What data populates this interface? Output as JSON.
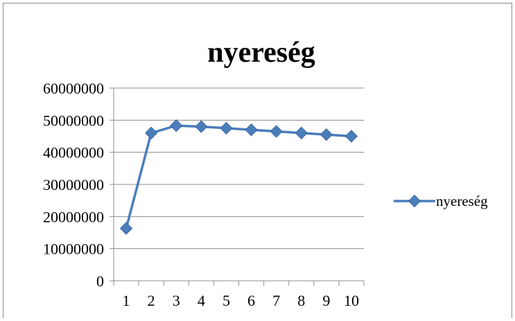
{
  "chart_data": {
    "type": "line",
    "title": "nyereség",
    "xlabel": "",
    "ylabel": "",
    "categories": [
      "1",
      "2",
      "3",
      "4",
      "5",
      "6",
      "7",
      "8",
      "9",
      "10"
    ],
    "series": [
      {
        "name": "nyereség",
        "values": [
          16300000,
          46000000,
          48300000,
          48000000,
          47500000,
          47000000,
          46500000,
          46000000,
          45500000,
          45000000
        ]
      }
    ],
    "ylim": [
      0,
      60000000
    ],
    "yticks": [
      "0",
      "10000000",
      "20000000",
      "30000000",
      "40000000",
      "50000000",
      "60000000"
    ],
    "grid": true,
    "legend_position": "right",
    "series_color": "#4a7ebb",
    "marker": "diamond"
  }
}
